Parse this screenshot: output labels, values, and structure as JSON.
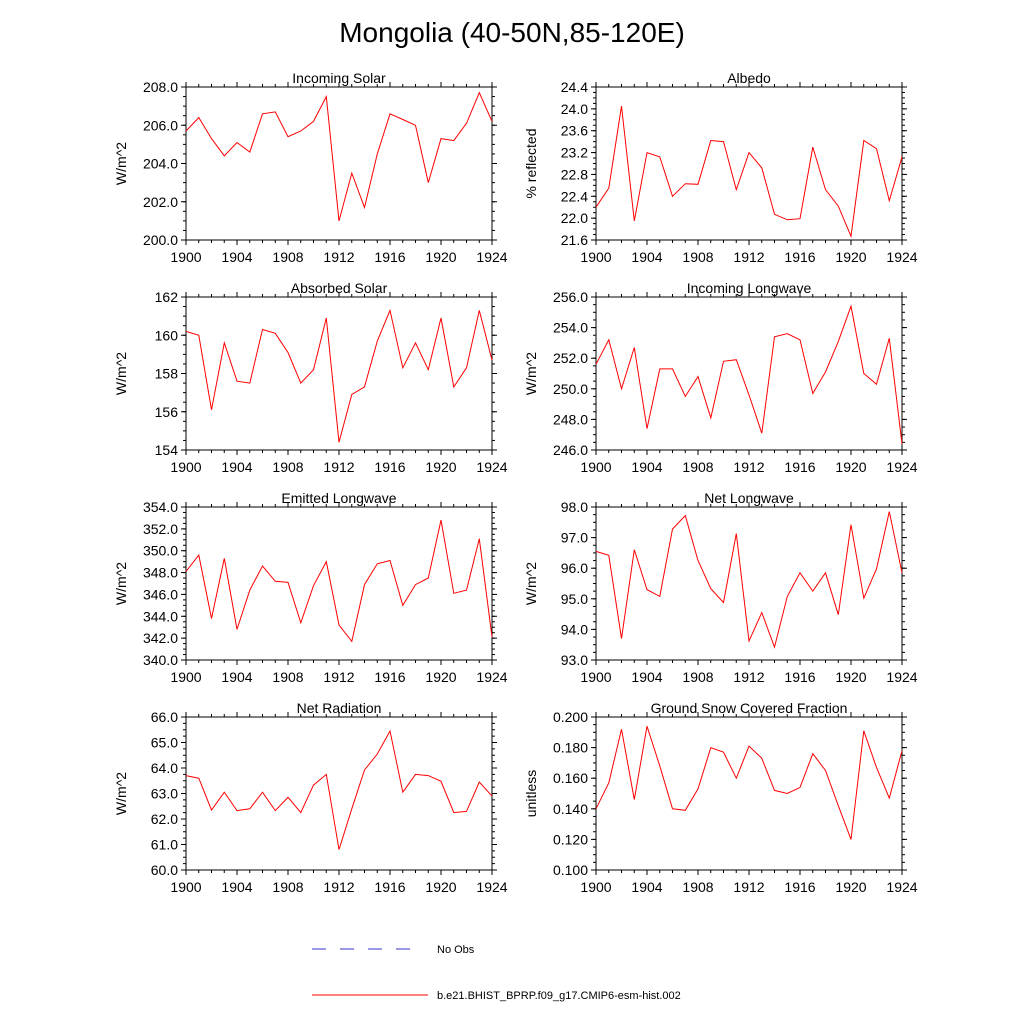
{
  "title": "Mongolia (40-50N,85-120E)",
  "colors": {
    "model": "#ff0000",
    "obs": "#3333cc",
    "axis": "#000000"
  },
  "legend": {
    "obs_label": "No Obs",
    "model_label": "b.e21.BHIST_BPRP.f09_g17.CMIP6-esm-hist.002"
  },
  "chart_data": [
    {
      "type": "line",
      "title": "Incoming Solar",
      "xlabel": "",
      "ylabel": "W/m^2",
      "xlim": [
        1900,
        1924
      ],
      "ylim": [
        200.0,
        208.0
      ],
      "xticks": [
        1900,
        1904,
        1908,
        1912,
        1916,
        1920,
        1924
      ],
      "yticks": [
        200.0,
        202.0,
        204.0,
        206.0,
        208.0
      ],
      "ytick_labels": [
        "200.0",
        "202.0",
        "204.0",
        "206.0",
        "208.0"
      ],
      "yminor": 0.5,
      "x": [
        1900,
        1901,
        1902,
        1903,
        1904,
        1905,
        1906,
        1907,
        1908,
        1909,
        1910,
        1911,
        1912,
        1913,
        1914,
        1915,
        1916,
        1917,
        1918,
        1919,
        1920,
        1921,
        1922,
        1923,
        1924
      ],
      "series": [
        {
          "name": "b.e21.BHIST_BPRP.f09_g17.CMIP6-esm-hist.002",
          "values": [
            205.7,
            206.4,
            205.3,
            204.4,
            205.1,
            204.6,
            206.6,
            206.7,
            205.4,
            205.7,
            206.2,
            207.5,
            201.0,
            203.5,
            201.7,
            204.5,
            206.6,
            206.3,
            206.0,
            203.0,
            205.3,
            205.2,
            206.1,
            207.7,
            206.2
          ]
        }
      ]
    },
    {
      "type": "line",
      "title": "Albedo",
      "xlabel": "",
      "ylabel": "% reflected",
      "xlim": [
        1900,
        1924
      ],
      "ylim": [
        21.6,
        24.4
      ],
      "xticks": [
        1900,
        1904,
        1908,
        1912,
        1916,
        1920,
        1924
      ],
      "yticks": [
        21.6,
        22.0,
        22.4,
        22.8,
        23.2,
        23.6,
        24.0,
        24.4
      ],
      "ytick_labels": [
        "21.6",
        "22.0",
        "22.4",
        "22.8",
        "23.2",
        "23.6",
        "24.0",
        "24.4"
      ],
      "yminor": 0.1,
      "x": [
        1900,
        1901,
        1902,
        1903,
        1904,
        1905,
        1906,
        1907,
        1908,
        1909,
        1910,
        1911,
        1912,
        1913,
        1914,
        1915,
        1916,
        1917,
        1918,
        1919,
        1920,
        1921,
        1922,
        1923,
        1924
      ],
      "series": [
        {
          "name": "b.e21.BHIST_BPRP.f09_g17.CMIP6-esm-hist.002",
          "values": [
            22.2,
            22.55,
            24.05,
            21.95,
            23.2,
            23.12,
            22.4,
            22.63,
            22.62,
            23.42,
            23.4,
            22.52,
            23.2,
            22.92,
            22.07,
            21.97,
            21.99,
            23.3,
            22.52,
            22.22,
            21.67,
            23.42,
            23.27,
            22.32,
            23.12
          ]
        }
      ]
    },
    {
      "type": "line",
      "title": "Absorbed Solar",
      "xlabel": "",
      "ylabel": "W/m^2",
      "xlim": [
        1900,
        1924
      ],
      "ylim": [
        154,
        162
      ],
      "xticks": [
        1900,
        1904,
        1908,
        1912,
        1916,
        1920,
        1924
      ],
      "yticks": [
        154,
        156,
        158,
        160,
        162
      ],
      "ytick_labels": [
        "154",
        "156",
        "158",
        "160",
        "162"
      ],
      "yminor": 0.5,
      "x": [
        1900,
        1901,
        1902,
        1903,
        1904,
        1905,
        1906,
        1907,
        1908,
        1909,
        1910,
        1911,
        1912,
        1913,
        1914,
        1915,
        1916,
        1917,
        1918,
        1919,
        1920,
        1921,
        1922,
        1923,
        1924
      ],
      "series": [
        {
          "name": "b.e21.BHIST_BPRP.f09_g17.CMIP6-esm-hist.002",
          "values": [
            160.2,
            160.0,
            156.1,
            159.6,
            157.6,
            157.5,
            160.3,
            160.1,
            159.1,
            157.5,
            158.2,
            160.9,
            154.4,
            156.9,
            157.3,
            159.7,
            161.3,
            158.3,
            159.6,
            158.2,
            160.9,
            157.3,
            158.3,
            161.3,
            158.7
          ]
        }
      ]
    },
    {
      "type": "line",
      "title": "Incoming Longwave",
      "xlabel": "",
      "ylabel": "W/m^2",
      "xlim": [
        1900,
        1924
      ],
      "ylim": [
        246.0,
        256.0
      ],
      "xticks": [
        1900,
        1904,
        1908,
        1912,
        1916,
        1920,
        1924
      ],
      "yticks": [
        246.0,
        248.0,
        250.0,
        252.0,
        254.0,
        256.0
      ],
      "ytick_labels": [
        "246.0",
        "248.0",
        "250.0",
        "252.0",
        "254.0",
        "256.0"
      ],
      "yminor": 0.5,
      "x": [
        1900,
        1901,
        1902,
        1903,
        1904,
        1905,
        1906,
        1907,
        1908,
        1909,
        1910,
        1911,
        1912,
        1913,
        1914,
        1915,
        1916,
        1917,
        1918,
        1919,
        1920,
        1921,
        1922,
        1923,
        1924
      ],
      "series": [
        {
          "name": "b.e21.BHIST_BPRP.f09_g17.CMIP6-esm-hist.002",
          "values": [
            251.6,
            253.2,
            250.0,
            252.7,
            247.4,
            251.3,
            251.3,
            249.5,
            250.8,
            248.1,
            251.8,
            251.9,
            249.6,
            247.1,
            253.4,
            253.6,
            253.2,
            249.7,
            251.1,
            253.1,
            255.4,
            251.0,
            250.3,
            253.3,
            246.4
          ]
        }
      ]
    },
    {
      "type": "line",
      "title": "Emitted Longwave",
      "xlabel": "",
      "ylabel": "W/m^2",
      "xlim": [
        1900,
        1924
      ],
      "ylim": [
        340.0,
        354.0
      ],
      "xticks": [
        1900,
        1904,
        1908,
        1912,
        1916,
        1920,
        1924
      ],
      "yticks": [
        340.0,
        342.0,
        344.0,
        346.0,
        348.0,
        350.0,
        352.0,
        354.0
      ],
      "ytick_labels": [
        "340.0",
        "342.0",
        "344.0",
        "346.0",
        "348.0",
        "350.0",
        "352.0",
        "354.0"
      ],
      "yminor": 0.5,
      "x": [
        1900,
        1901,
        1902,
        1903,
        1904,
        1905,
        1906,
        1907,
        1908,
        1909,
        1910,
        1911,
        1912,
        1913,
        1914,
        1915,
        1916,
        1917,
        1918,
        1919,
        1920,
        1921,
        1922,
        1923,
        1924
      ],
      "series": [
        {
          "name": "b.e21.BHIST_BPRP.f09_g17.CMIP6-esm-hist.002",
          "values": [
            348.1,
            349.6,
            343.8,
            349.3,
            342.8,
            346.4,
            348.6,
            347.2,
            347.1,
            343.4,
            346.8,
            349.0,
            343.2,
            341.7,
            346.9,
            348.8,
            349.1,
            345.0,
            346.9,
            347.5,
            352.8,
            346.1,
            346.4,
            351.1,
            342.1
          ]
        }
      ]
    },
    {
      "type": "line",
      "title": "Net Longwave",
      "xlabel": "",
      "ylabel": "W/m^2",
      "xlim": [
        1900,
        1924
      ],
      "ylim": [
        93.0,
        98.0
      ],
      "xticks": [
        1900,
        1904,
        1908,
        1912,
        1916,
        1920,
        1924
      ],
      "yticks": [
        93.0,
        94.0,
        95.0,
        96.0,
        97.0,
        98.0
      ],
      "ytick_labels": [
        "93.0",
        "94.0",
        "95.0",
        "96.0",
        "97.0",
        "98.0"
      ],
      "yminor": 0.25,
      "x": [
        1900,
        1901,
        1902,
        1903,
        1904,
        1905,
        1906,
        1907,
        1908,
        1909,
        1910,
        1911,
        1912,
        1913,
        1914,
        1915,
        1916,
        1917,
        1918,
        1919,
        1920,
        1921,
        1922,
        1923,
        1924
      ],
      "series": [
        {
          "name": "b.e21.BHIST_BPRP.f09_g17.CMIP6-esm-hist.002",
          "values": [
            96.55,
            96.42,
            93.7,
            96.6,
            95.3,
            95.08,
            97.28,
            97.72,
            96.25,
            95.33,
            94.88,
            97.13,
            93.62,
            94.55,
            93.42,
            95.08,
            95.85,
            95.25,
            95.85,
            94.48,
            97.42,
            95.02,
            95.98,
            97.85,
            95.85
          ]
        }
      ]
    },
    {
      "type": "line",
      "title": "Net Radiation",
      "xlabel": "",
      "ylabel": "W/m^2",
      "xlim": [
        1900,
        1924
      ],
      "ylim": [
        60.0,
        66.0
      ],
      "xticks": [
        1900,
        1904,
        1908,
        1912,
        1916,
        1920,
        1924
      ],
      "yticks": [
        60.0,
        61.0,
        62.0,
        63.0,
        64.0,
        65.0,
        66.0
      ],
      "ytick_labels": [
        "60.0",
        "61.0",
        "62.0",
        "63.0",
        "64.0",
        "65.0",
        "66.0"
      ],
      "yminor": 0.25,
      "x": [
        1900,
        1901,
        1902,
        1903,
        1904,
        1905,
        1906,
        1907,
        1908,
        1909,
        1910,
        1911,
        1912,
        1913,
        1914,
        1915,
        1916,
        1917,
        1918,
        1919,
        1920,
        1921,
        1922,
        1923,
        1924
      ],
      "series": [
        {
          "name": "b.e21.BHIST_BPRP.f09_g17.CMIP6-esm-hist.002",
          "values": [
            63.7,
            63.6,
            62.35,
            63.05,
            62.33,
            62.4,
            63.05,
            62.33,
            62.85,
            62.25,
            63.33,
            63.75,
            60.8,
            62.4,
            63.92,
            64.55,
            65.45,
            63.05,
            63.75,
            63.7,
            63.48,
            62.25,
            62.3,
            63.45,
            62.9
          ]
        }
      ]
    },
    {
      "type": "line",
      "title": "Ground Snow Covered Fraction",
      "xlabel": "",
      "ylabel": "unitless",
      "xlim": [
        1900,
        1924
      ],
      "ylim": [
        0.1,
        0.2
      ],
      "xticks": [
        1900,
        1904,
        1908,
        1912,
        1916,
        1920,
        1924
      ],
      "yticks": [
        0.1,
        0.12,
        0.14,
        0.16,
        0.18,
        0.2
      ],
      "ytick_labels": [
        "0.100",
        "0.120",
        "0.140",
        "0.160",
        "0.180",
        "0.200"
      ],
      "yminor": 0.005,
      "x": [
        1900,
        1901,
        1902,
        1903,
        1904,
        1905,
        1906,
        1907,
        1908,
        1909,
        1910,
        1911,
        1912,
        1913,
        1914,
        1915,
        1916,
        1917,
        1918,
        1919,
        1920,
        1921,
        1922,
        1923,
        1924
      ],
      "series": [
        {
          "name": "b.e21.BHIST_BPRP.f09_g17.CMIP6-esm-hist.002",
          "values": [
            0.14,
            0.157,
            0.192,
            0.146,
            0.194,
            0.168,
            0.14,
            0.139,
            0.153,
            0.18,
            0.177,
            0.16,
            0.181,
            0.173,
            0.152,
            0.15,
            0.154,
            0.176,
            0.165,
            0.142,
            0.12,
            0.191,
            0.167,
            0.147,
            0.178
          ]
        }
      ]
    }
  ]
}
